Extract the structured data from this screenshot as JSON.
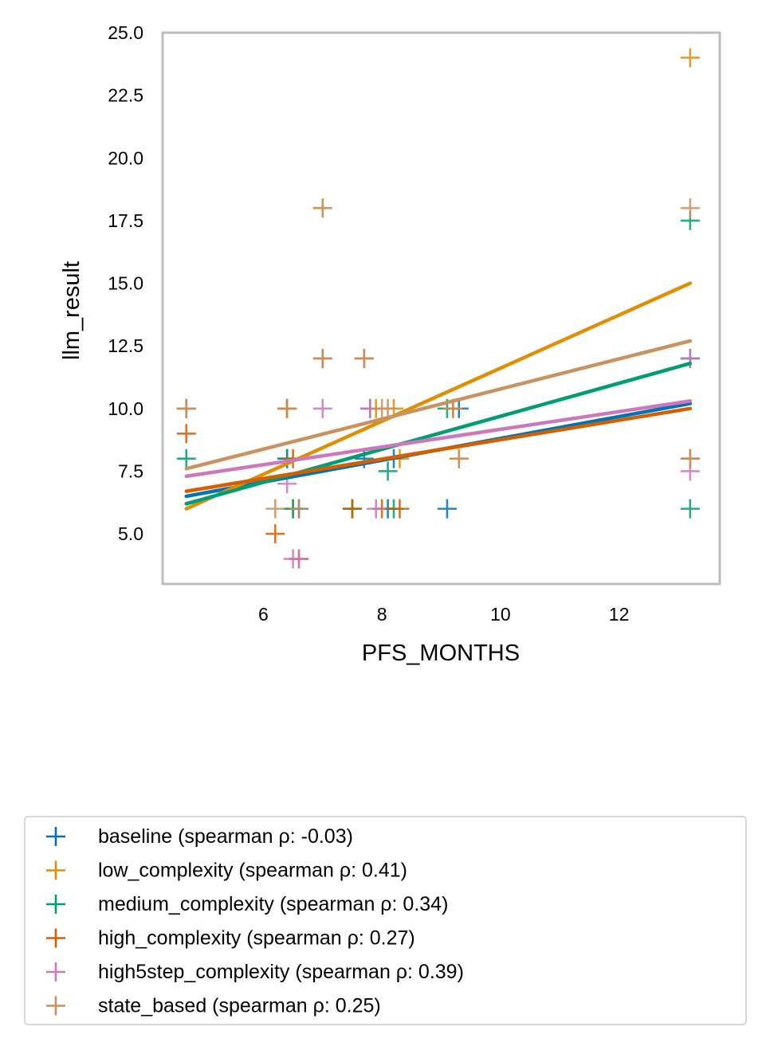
{
  "chart_data": {
    "type": "scatter",
    "xlabel": "PFS_MONTHS",
    "ylabel": "llm_result",
    "xlim": [
      4.3,
      13.7
    ],
    "ylim": [
      3.0,
      25.0
    ],
    "x_ticks": [
      6,
      8,
      10,
      12
    ],
    "y_ticks": [
      5.0,
      7.5,
      10.0,
      12.5,
      15.0,
      17.5,
      20.0,
      22.5,
      25.0
    ],
    "grid": false,
    "legend_position": "bottom",
    "marker": "plus",
    "series": [
      {
        "name": "baseline (spearman ρ: -0.03)",
        "color": "#0173b2",
        "trend": [
          [
            4.7,
            6.5
          ],
          [
            13.2,
            10.2
          ]
        ],
        "points": [
          [
            4.7,
            10
          ],
          [
            6.4,
            8
          ],
          [
            6.4,
            10
          ],
          [
            6.6,
            6
          ],
          [
            7.7,
            8
          ],
          [
            7.8,
            10
          ],
          [
            8.1,
            6
          ],
          [
            8.2,
            8
          ],
          [
            9.1,
            6
          ],
          [
            9.3,
            10
          ],
          [
            13.2,
            12
          ]
        ]
      },
      {
        "name": "low_complexity (spearman ρ: 0.41)",
        "color": "#de8f05",
        "trend": [
          [
            4.7,
            6.0
          ],
          [
            13.2,
            15.0
          ]
        ],
        "points": [
          [
            4.7,
            10
          ],
          [
            6.4,
            10
          ],
          [
            6.5,
            6
          ],
          [
            7.0,
            18
          ],
          [
            7.5,
            6
          ],
          [
            7.9,
            10
          ],
          [
            8.2,
            10
          ],
          [
            8.3,
            8
          ],
          [
            9.3,
            8
          ],
          [
            13.2,
            24
          ]
        ]
      },
      {
        "name": "medium_complexity (spearman ρ: 0.34)",
        "color": "#029e73",
        "trend": [
          [
            4.7,
            6.2
          ],
          [
            13.2,
            11.8
          ]
        ],
        "points": [
          [
            4.7,
            8
          ],
          [
            6.4,
            8
          ],
          [
            6.5,
            6
          ],
          [
            7.5,
            6
          ],
          [
            8.1,
            7.5
          ],
          [
            8.2,
            6
          ],
          [
            9.1,
            10
          ],
          [
            13.2,
            17.5
          ],
          [
            13.2,
            6
          ]
        ]
      },
      {
        "name": "high_complexity (spearman ρ: 0.27)",
        "color": "#d55e00",
        "trend": [
          [
            4.7,
            6.7
          ],
          [
            13.2,
            10.0
          ]
        ],
        "points": [
          [
            4.7,
            9
          ],
          [
            6.2,
            5
          ],
          [
            6.4,
            10
          ],
          [
            6.5,
            8
          ],
          [
            6.6,
            4
          ],
          [
            7.0,
            12
          ],
          [
            7.5,
            6
          ],
          [
            7.7,
            12
          ],
          [
            8.0,
            6
          ],
          [
            8.3,
            6
          ],
          [
            9.2,
            10
          ],
          [
            13.2,
            8
          ]
        ]
      },
      {
        "name": "high5step_complexity (spearman ρ: 0.39)",
        "color": "#cc78bc",
        "trend": [
          [
            4.7,
            7.3
          ],
          [
            13.2,
            10.3
          ]
        ],
        "points": [
          [
            6.4,
            7
          ],
          [
            6.5,
            4
          ],
          [
            6.6,
            4
          ],
          [
            7.0,
            10
          ],
          [
            7.8,
            10
          ],
          [
            7.9,
            6
          ],
          [
            13.2,
            12
          ],
          [
            13.2,
            7.5
          ]
        ]
      },
      {
        "name": "state_based (spearman ρ: 0.25)",
        "color": "#ca9161",
        "trend": [
          [
            4.7,
            7.6
          ],
          [
            13.2,
            12.7
          ]
        ],
        "points": [
          [
            4.7,
            10
          ],
          [
            6.2,
            6
          ],
          [
            6.4,
            10
          ],
          [
            6.6,
            6
          ],
          [
            7.0,
            18
          ],
          [
            7.0,
            12
          ],
          [
            7.7,
            12
          ],
          [
            8.0,
            10
          ],
          [
            8.1,
            10
          ],
          [
            9.2,
            10
          ],
          [
            9.3,
            8
          ],
          [
            13.2,
            18
          ],
          [
            13.2,
            8
          ]
        ]
      }
    ]
  }
}
